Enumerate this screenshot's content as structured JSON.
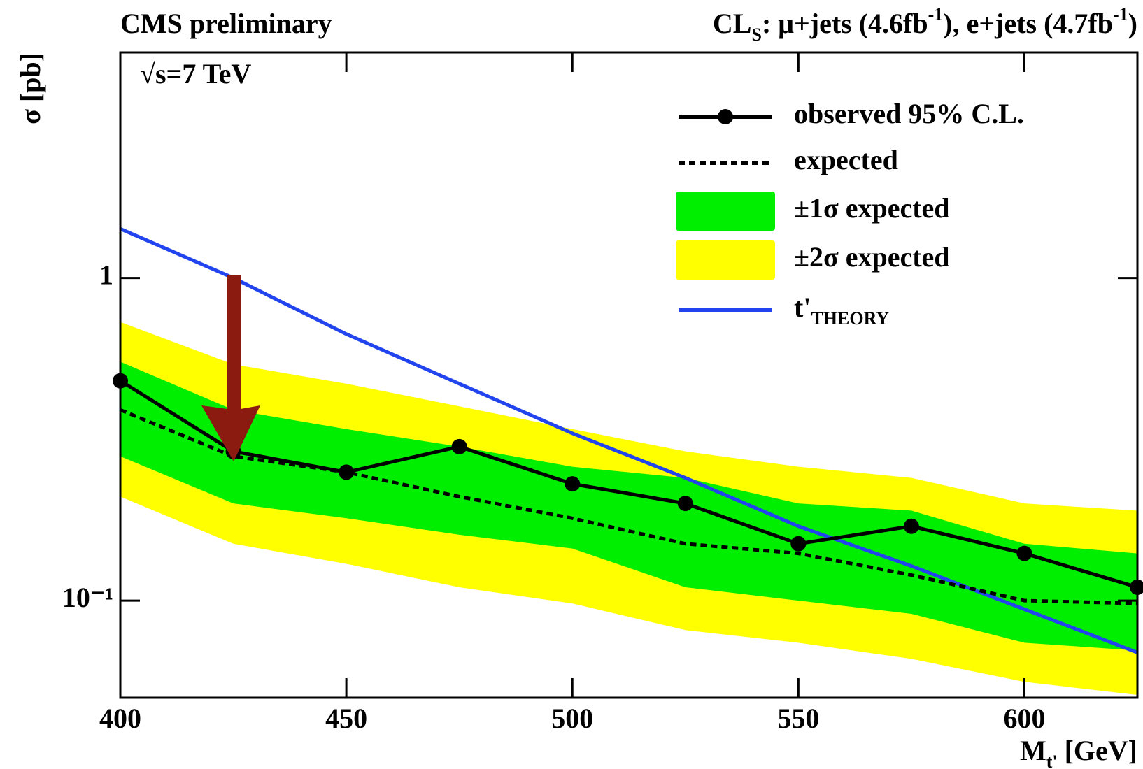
{
  "chart_data": {
    "type": "line",
    "title_left": "CMS preliminary",
    "title": [
      {
        "text": "CL"
      },
      {
        "text": "S",
        "shift": "sub"
      },
      {
        "text": ": μ+jets (4.6fb"
      },
      {
        "text": "-1",
        "shift": "super"
      },
      {
        "text": "), e+jets (4.7fb"
      },
      {
        "text": "-1",
        "shift": "super"
      },
      {
        "text": ")"
      }
    ],
    "annotation": "√s=7 TeV",
    "ylabel": "σ [pb]",
    "xlabel": [
      {
        "text": "M"
      },
      {
        "text": "t'",
        "shift": "sub"
      },
      {
        "text": " [GeV]"
      }
    ],
    "x": [
      400,
      425,
      450,
      475,
      500,
      525,
      550,
      575,
      600,
      625
    ],
    "xlim": [
      400,
      625
    ],
    "xticks": [
      400,
      450,
      500,
      550,
      600
    ],
    "ylim": [
      0.05,
      5
    ],
    "yscale": "log",
    "yticks": [
      {
        "value": 0.1,
        "label": "10⁻¹"
      },
      1
    ],
    "legend": "upper right",
    "series": [
      {
        "name": "observed 95% C.L.",
        "color": "#000000",
        "style": "solid",
        "markers": true,
        "values": [
          0.48,
          0.29,
          0.25,
          0.3,
          0.23,
          0.2,
          0.15,
          0.17,
          0.14,
          0.11
        ]
      },
      {
        "name": "expected",
        "color": "#000000",
        "style": "dashed",
        "values": [
          0.39,
          0.28,
          0.25,
          0.21,
          0.18,
          0.15,
          0.14,
          0.12,
          0.1,
          0.098
        ]
      },
      {
        "name": "±1σ expected",
        "color": "#00ee00",
        "style": "band",
        "upper": [
          0.55,
          0.39,
          0.34,
          0.3,
          0.26,
          0.24,
          0.2,
          0.19,
          0.15,
          0.14
        ],
        "lower": [
          0.28,
          0.2,
          0.18,
          0.16,
          0.145,
          0.11,
          0.1,
          0.091,
          0.074,
          0.07
        ]
      },
      {
        "name": "±2σ expected",
        "color": "#ffff00",
        "style": "band",
        "upper": [
          0.73,
          0.54,
          0.47,
          0.4,
          0.34,
          0.29,
          0.26,
          0.24,
          0.2,
          0.19
        ],
        "lower": [
          0.21,
          0.15,
          0.13,
          0.11,
          0.098,
          0.081,
          0.074,
          0.066,
          0.056,
          0.051
        ]
      },
      {
        "name": "t'",
        "name_subscript": "THEORY",
        "color": "#2244ee",
        "style": "solid",
        "values": [
          1.42,
          1.0,
          0.67,
          0.47,
          0.33,
          0.24,
          0.17,
          0.128,
          0.094,
          0.069
        ]
      }
    ]
  }
}
